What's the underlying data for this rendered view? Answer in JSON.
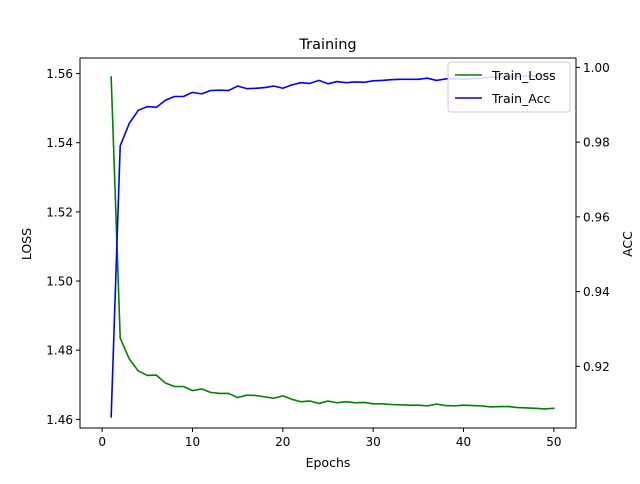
{
  "chart_data": {
    "type": "line",
    "title": "Training",
    "xlabel": "Epochs",
    "ylabel_left": "LOSS",
    "ylabel_right": "ACC",
    "xlim": [
      -2.45,
      52.45
    ],
    "ylim_left": [
      1.4575,
      1.5645
    ],
    "ylim_right": [
      0.9035,
      1.0025
    ],
    "x_ticks": [
      0,
      10,
      20,
      30,
      40,
      50
    ],
    "y_ticks_left": [
      1.46,
      1.48,
      1.5,
      1.52,
      1.54,
      1.56
    ],
    "y_ticks_left_labels": [
      "1.46",
      "1.48",
      "1.50",
      "1.52",
      "1.54",
      "1.56"
    ],
    "y_ticks_right": [
      0.92,
      0.94,
      0.96,
      0.98,
      1.0
    ],
    "y_ticks_right_labels": [
      "0.92",
      "0.94",
      "0.96",
      "0.98",
      "1.00"
    ],
    "grid": false,
    "legend_position": "upper-right",
    "x": [
      1,
      2,
      3,
      4,
      5,
      6,
      7,
      8,
      9,
      10,
      11,
      12,
      13,
      14,
      15,
      16,
      17,
      18,
      19,
      20,
      21,
      22,
      23,
      24,
      25,
      26,
      27,
      28,
      29,
      30,
      31,
      32,
      33,
      34,
      35,
      36,
      37,
      38,
      39,
      40,
      41,
      42,
      43,
      44,
      45,
      46,
      47,
      48,
      49,
      50
    ],
    "series": [
      {
        "name": "Train_Loss",
        "axis": "left",
        "color": "#008000",
        "values": [
          1.559,
          1.4835,
          1.4775,
          1.474,
          1.4727,
          1.4728,
          1.4705,
          1.4695,
          1.4695,
          1.4683,
          1.4688,
          1.4678,
          1.4675,
          1.4675,
          1.4663,
          1.467,
          1.4669,
          1.4665,
          1.4661,
          1.4668,
          1.4658,
          1.4651,
          1.4653,
          1.4646,
          1.4653,
          1.4648,
          1.4651,
          1.4648,
          1.4649,
          1.4645,
          1.4645,
          1.4643,
          1.4642,
          1.4641,
          1.4641,
          1.4639,
          1.4644,
          1.464,
          1.4639,
          1.4641,
          1.464,
          1.4639,
          1.4636,
          1.4637,
          1.4637,
          1.4634,
          1.4633,
          1.4632,
          1.463,
          1.4632
        ]
      },
      {
        "name": "Train_Acc",
        "axis": "right",
        "color": "#0000ff",
        "values": [
          0.9065,
          0.979,
          0.985,
          0.9885,
          0.9895,
          0.9893,
          0.9912,
          0.9922,
          0.9922,
          0.9933,
          0.9929,
          0.9938,
          0.9939,
          0.9938,
          0.995,
          0.9943,
          0.9944,
          0.9946,
          0.995,
          0.9944,
          0.9953,
          0.9959,
          0.9957,
          0.9965,
          0.9956,
          0.9962,
          0.9959,
          0.9961,
          0.996,
          0.9964,
          0.9965,
          0.9967,
          0.9968,
          0.9968,
          0.9968,
          0.9971,
          0.9965,
          0.9969,
          0.997,
          0.9968,
          0.997,
          0.9971,
          0.9974,
          0.9973,
          0.9974,
          0.9976,
          0.9977,
          0.9977,
          0.9979,
          0.9978
        ]
      }
    ]
  }
}
